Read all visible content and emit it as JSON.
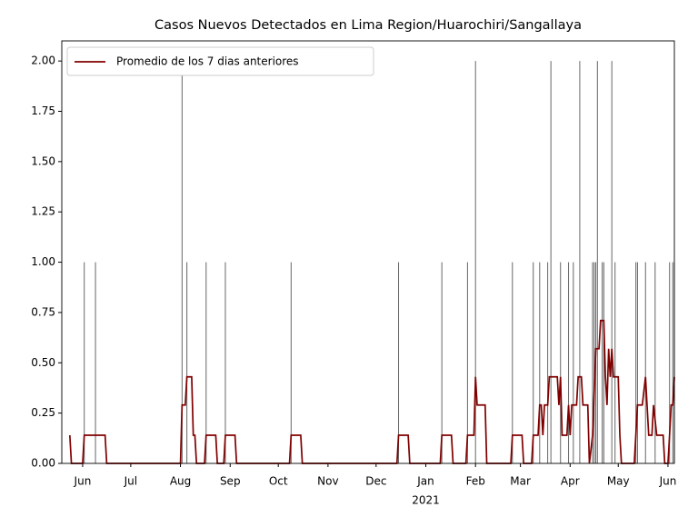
{
  "chart_data": {
    "type": "bar_line",
    "title": "Casos Nuevos Detectados en Lima Region/Huarochiri/Sangallaya",
    "bars": {
      "color": "#666666",
      "x": [
        18415,
        18422,
        18476,
        18479,
        18491,
        18503,
        18544,
        18611,
        18638,
        18654,
        18659,
        18682,
        18695,
        18699,
        18704,
        18706,
        18712,
        18717,
        18720,
        18724,
        18732,
        18733,
        18734,
        18735,
        18738,
        18739,
        18744,
        18746,
        18759,
        18760,
        18765,
        18771,
        18780,
        18782,
        18783
      ],
      "values": [
        1,
        1,
        2,
        1,
        1,
        1,
        1,
        1,
        1,
        1,
        2,
        1,
        1,
        1,
        1,
        2,
        1,
        1,
        1,
        2,
        1,
        1,
        1,
        2,
        1,
        1,
        2,
        1,
        1,
        1,
        1,
        1,
        1,
        1,
        1
      ]
    },
    "series": [
      {
        "name": "Promedio de los 7 dias anteriores",
        "color": "#800000",
        "x": [
          18406,
          18407,
          18414,
          18415,
          18428,
          18429,
          18475,
          18476,
          18478,
          18479,
          18482,
          18483,
          18484,
          18485,
          18490,
          18491,
          18497,
          18498,
          18502,
          18503,
          18509,
          18510,
          18543,
          18544,
          18550,
          18551,
          18610,
          18611,
          18617,
          18618,
          18637,
          18638,
          18644,
          18645,
          18653,
          18654,
          18658,
          18659,
          18660,
          18665,
          18666,
          18681,
          18682,
          18688,
          18689,
          18694,
          18695,
          18698,
          18699,
          18700,
          18701,
          18702,
          18704,
          18705,
          18710,
          18711,
          18712,
          18713,
          18716,
          18717,
          18718,
          18719,
          18722,
          18723,
          18725,
          18726,
          18729,
          18730,
          18732,
          18734,
          18736,
          18737,
          18739,
          18740,
          18741,
          18742,
          18743,
          18744,
          18745,
          18748,
          18749,
          18750,
          18758,
          18760,
          18763,
          18765,
          18767,
          18769,
          18770,
          18772,
          18776,
          18777,
          18779,
          18780,
          18781,
          18782,
          18783
        ],
        "values": [
          0.14,
          0,
          0,
          0.14,
          0.14,
          0,
          0,
          0.29,
          0.29,
          0.43,
          0.43,
          0.14,
          0.14,
          0,
          0,
          0.14,
          0.14,
          0,
          0,
          0.14,
          0.14,
          0,
          0,
          0.14,
          0.14,
          0,
          0,
          0.14,
          0.14,
          0,
          0,
          0.14,
          0.14,
          0,
          0,
          0.14,
          0.14,
          0.43,
          0.29,
          0.29,
          0,
          0,
          0.14,
          0.14,
          0,
          0,
          0.14,
          0.14,
          0.29,
          0.29,
          0.14,
          0.29,
          0.29,
          0.43,
          0.43,
          0.29,
          0.43,
          0.14,
          0.14,
          0.29,
          0.14,
          0.29,
          0.29,
          0.43,
          0.43,
          0.29,
          0.29,
          0,
          0.14,
          0.57,
          0.57,
          0.71,
          0.71,
          0.43,
          0.29,
          0.57,
          0.43,
          0.57,
          0.43,
          0.43,
          0.14,
          0,
          0,
          0.29,
          0.29,
          0.43,
          0.14,
          0.14,
          0.29,
          0.14,
          0.14,
          0,
          0,
          0.14,
          0.29,
          0.29,
          0.43
        ]
      }
    ],
    "xlim": [
      18401,
      18783
    ],
    "xticks": [
      {
        "value": 18414,
        "label": "Jun"
      },
      {
        "value": 18444,
        "label": "Jul"
      },
      {
        "value": 18475,
        "label": "Aug"
      },
      {
        "value": 18506,
        "label": "Sep"
      },
      {
        "value": 18536,
        "label": "Oct"
      },
      {
        "value": 18567,
        "label": "Nov"
      },
      {
        "value": 18597,
        "label": "Dec"
      },
      {
        "value": 18628,
        "label": "Jan"
      },
      {
        "value": 18659,
        "label": "Feb"
      },
      {
        "value": 18687,
        "label": "Mar"
      },
      {
        "value": 18718,
        "label": "Apr"
      },
      {
        "value": 18748,
        "label": "May"
      },
      {
        "value": 18779,
        "label": "Jun"
      }
    ],
    "year_label": "2021",
    "ylim": [
      0,
      2.1
    ],
    "yticks": [
      {
        "value": 0,
        "label": "0.00"
      },
      {
        "value": 0.25,
        "label": "0.25"
      },
      {
        "value": 0.5,
        "label": "0.50"
      },
      {
        "value": 0.75,
        "label": "0.75"
      },
      {
        "value": 1,
        "label": "1.00"
      },
      {
        "value": 1.25,
        "label": "1.25"
      },
      {
        "value": 1.5,
        "label": "1.50"
      },
      {
        "value": 1.75,
        "label": "1.75"
      },
      {
        "value": 2,
        "label": "2.00"
      }
    ],
    "legend": "upper left"
  }
}
